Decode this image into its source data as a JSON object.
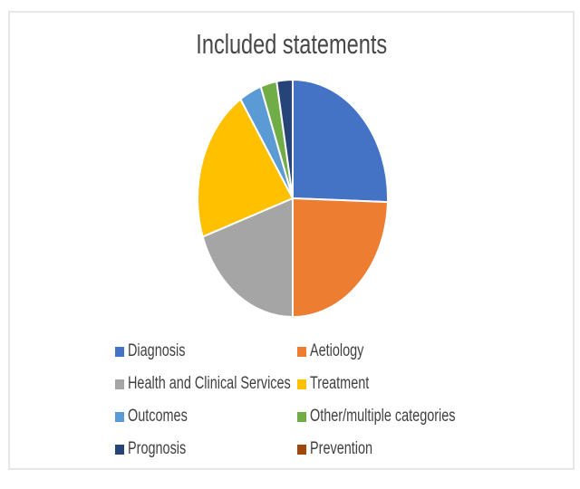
{
  "window": {
    "background": "#ffffff",
    "frame_border_color": "#e7e7e7"
  },
  "chart_data": {
    "type": "pie",
    "title": "Included statements",
    "title_color": "#474747",
    "legend_text_color": "#404040",
    "start_angle_deg": 0,
    "direction": "clockwise",
    "legend_position": "bottom",
    "legend_columns": 2,
    "slice_border_color": "#ffffff",
    "categories": [
      "Diagnosis",
      "Aetiology",
      "Health and Clinical Services",
      "Treatment",
      "Outcomes",
      "Other/multiple categories",
      "Prognosis",
      "Prevention"
    ],
    "values_percent": [
      25.5,
      24.5,
      19.75,
      21.0,
      3.8,
      2.75,
      2.7,
      0
    ],
    "colors": [
      "#4472C4",
      "#ED7D31",
      "#A5A5A5",
      "#FFC000",
      "#5B9BD5",
      "#70AD47",
      "#264478",
      "#9E480E"
    ]
  }
}
